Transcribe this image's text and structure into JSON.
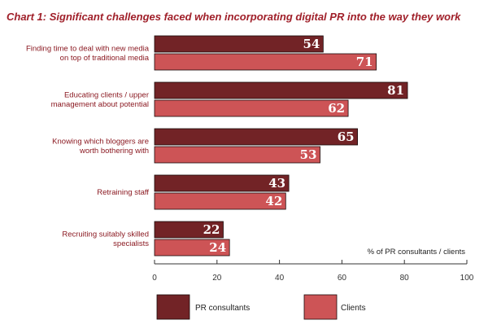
{
  "chart_data": {
    "type": "bar",
    "orientation": "horizontal",
    "title": "Chart 1: Significant challenges faced when incorporating digital PR into the way they work",
    "xlabel": "% of PR consultants / clients",
    "xlim": [
      0,
      100
    ],
    "xticks": [
      "0",
      "20",
      "40",
      "60",
      "80",
      "100"
    ],
    "categories": [
      [
        "Finding time to deal with new media",
        "on top of traditional media"
      ],
      [
        "Educating clients / upper",
        "management about potential"
      ],
      [
        "Knowing which bloggers are",
        "worth bothering with"
      ],
      [
        "Retraining staff"
      ],
      [
        "Recruiting suitably skilled",
        "specialists"
      ]
    ],
    "series": [
      {
        "name": "PR consultants",
        "color": "#722326",
        "values": [
          54,
          81,
          65,
          43,
          22
        ]
      },
      {
        "name": "Clients",
        "color": "#cd5456",
        "values": [
          71,
          62,
          53,
          42,
          24
        ]
      }
    ],
    "grid": false,
    "legend": "bottom"
  }
}
